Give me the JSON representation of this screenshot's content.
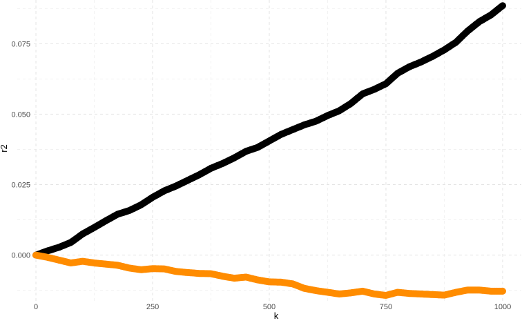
{
  "chart_data": {
    "type": "scatter",
    "title": "",
    "xlabel": "k",
    "ylabel": "r2",
    "xlim": [
      -40,
      1040
    ],
    "ylim": [
      -0.0165,
      0.0905
    ],
    "x_ticks": [
      0,
      250,
      500,
      750,
      1000
    ],
    "x_tick_labels": [
      "0",
      "250",
      "500",
      "750",
      "1000"
    ],
    "y_ticks": [
      0.0,
      0.025,
      0.05,
      0.075
    ],
    "y_tick_labels": [
      "0.000",
      "0.025",
      "0.050",
      "0.075"
    ],
    "grid": true,
    "legend": "none",
    "series": [
      {
        "color": "#000000",
        "x": [
          0,
          25,
          50,
          75,
          100,
          125,
          150,
          175,
          200,
          225,
          250,
          275,
          300,
          325,
          350,
          375,
          400,
          425,
          450,
          475,
          500,
          525,
          550,
          575,
          600,
          625,
          650,
          675,
          700,
          725,
          750,
          775,
          800,
          825,
          850,
          875,
          900,
          925,
          950,
          975,
          1000
        ],
        "y": [
          0.0,
          0.0015,
          0.0028,
          0.0045,
          0.0075,
          0.0098,
          0.0122,
          0.0145,
          0.0158,
          0.0178,
          0.0205,
          0.0228,
          0.0245,
          0.0265,
          0.0285,
          0.0308,
          0.0325,
          0.0345,
          0.0368,
          0.0382,
          0.0405,
          0.0428,
          0.0445,
          0.0462,
          0.0475,
          0.0495,
          0.0512,
          0.0538,
          0.0572,
          0.0588,
          0.0608,
          0.0645,
          0.0668,
          0.0685,
          0.0705,
          0.0728,
          0.0755,
          0.0795,
          0.0828,
          0.0852,
          0.0885
        ]
      },
      {
        "color": "#ff8c00",
        "x": [
          0,
          25,
          50,
          75,
          100,
          125,
          150,
          175,
          200,
          225,
          250,
          275,
          300,
          325,
          350,
          375,
          400,
          425,
          450,
          475,
          500,
          525,
          550,
          575,
          600,
          625,
          650,
          675,
          700,
          725,
          750,
          775,
          800,
          825,
          850,
          875,
          900,
          925,
          950,
          975,
          1000
        ],
        "y": [
          0.0,
          -0.0008,
          -0.0018,
          -0.0028,
          -0.0022,
          -0.0028,
          -0.0032,
          -0.0036,
          -0.0046,
          -0.0052,
          -0.0048,
          -0.0049,
          -0.0058,
          -0.0062,
          -0.0065,
          -0.0066,
          -0.0075,
          -0.0082,
          -0.0078,
          -0.0088,
          -0.0095,
          -0.0096,
          -0.0102,
          -0.0118,
          -0.0126,
          -0.0132,
          -0.0138,
          -0.0134,
          -0.0128,
          -0.0138,
          -0.0143,
          -0.0132,
          -0.0136,
          -0.0138,
          -0.014,
          -0.0142,
          -0.0132,
          -0.0124,
          -0.0124,
          -0.0128,
          -0.0128
        ]
      }
    ]
  }
}
